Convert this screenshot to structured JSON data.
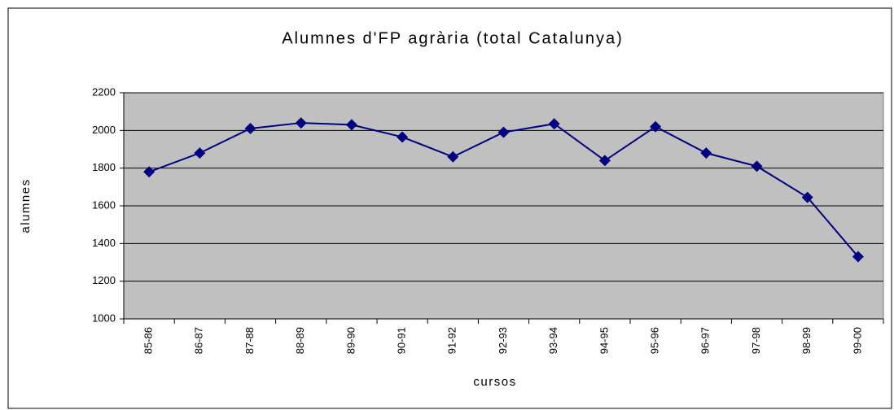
{
  "chart_data": {
    "type": "line",
    "title": "Alumnes d'FP agrària (total Catalunya)",
    "xlabel": "cursos",
    "ylabel": "alumnes",
    "categories": [
      "85-86",
      "86-87",
      "87-88",
      "88-89",
      "89-90",
      "90-91",
      "91-92",
      "92-93",
      "93-94",
      "94-95",
      "95-96",
      "96-97",
      "97-98",
      "98-99",
      "99-00"
    ],
    "series": [
      {
        "name": "alumnes",
        "color": "#000080",
        "values": [
          1780,
          1880,
          2010,
          2040,
          2030,
          1965,
          1860,
          1990,
          2035,
          1840,
          2020,
          1880,
          1810,
          1645,
          1330
        ]
      }
    ],
    "ylim": [
      1000,
      2200
    ],
    "yticks": [
      1000,
      1200,
      1400,
      1600,
      1800,
      2000,
      2200
    ],
    "grid": true
  }
}
